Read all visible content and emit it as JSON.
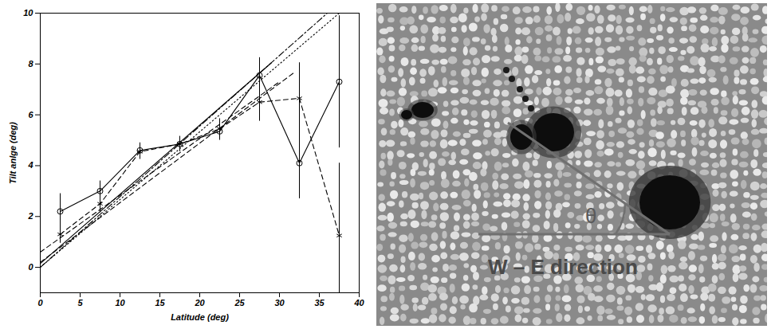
{
  "chart_data": {
    "type": "line",
    "x_label": "Latitude (deg)",
    "y_label": "Tilt anlge (deg)",
    "xlim": [
      0,
      40
    ],
    "xticks": [
      0,
      5,
      10,
      15,
      20,
      25,
      30,
      35,
      40
    ],
    "ylim": [
      -1,
      10
    ],
    "yticks": [
      0,
      2,
      4,
      6,
      8,
      10
    ],
    "grid": false,
    "series": [
      {
        "color": "#000000",
        "marker": "circle",
        "line_style": "solid",
        "x": [
          2.5,
          7.5,
          12.5,
          17.5,
          22.5,
          27.5,
          32.5,
          37.5
        ],
        "values": [
          2.2,
          3.0,
          4.6,
          4.85,
          5.35,
          7.55,
          4.1,
          7.3
        ],
        "error": [
          0.7,
          0.4,
          0.3,
          0.3,
          0.35,
          0.7,
          1.4,
          2.6
        ]
      },
      {
        "color": "#000000",
        "marker": "asterisk",
        "line_style": "dashed",
        "x": [
          2.5,
          7.5,
          12.5,
          17.5,
          22.5,
          27.5,
          32.5,
          37.5
        ],
        "values": [
          1.3,
          2.5,
          4.55,
          4.85,
          5.45,
          6.5,
          6.65,
          1.25
        ],
        "error": [
          0.35,
          0.35,
          0.3,
          0.3,
          0.4,
          0.75,
          1.4,
          2.85
        ]
      },
      {
        "color": "#000000",
        "marker": "none",
        "line_style": "solid",
        "x": [
          0,
          29
        ],
        "values": [
          0.15,
          8.05
        ]
      },
      {
        "color": "#000000",
        "marker": "none",
        "line_style": "dotted",
        "x": [
          0,
          37.5
        ],
        "values": [
          0,
          10
        ]
      },
      {
        "color": "#000000",
        "marker": "none",
        "line_style": "dashdot",
        "x": [
          0,
          36
        ],
        "values": [
          0,
          10
        ]
      },
      {
        "color": "#000000",
        "marker": "none",
        "line_style": "dashed",
        "x": [
          0,
          32
        ],
        "values": [
          0.2,
          7.7
        ]
      },
      {
        "color": "#000000",
        "marker": "none",
        "line_style": "dashed",
        "x": [
          0,
          30
        ],
        "values": [
          0.6,
          7.3
        ]
      }
    ]
  },
  "image": {
    "angle_label": "θ",
    "direction_label": "W – E direction"
  }
}
